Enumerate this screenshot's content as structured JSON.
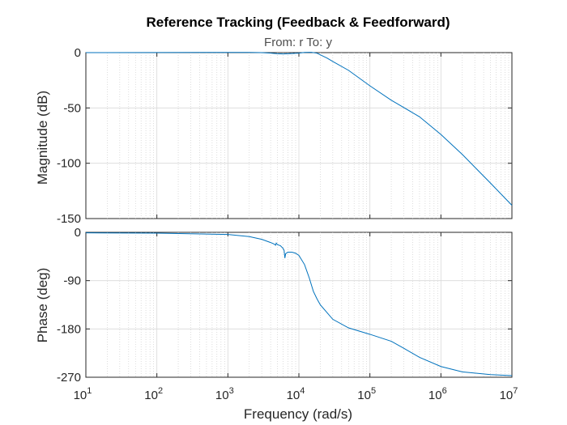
{
  "chart_data": {
    "type": "line",
    "title": "Reference Tracking (Feedback & Feedforward)",
    "subtitle": "From: r  To: y",
    "xlabel": "Frequency  (rad/s)",
    "xscale": "log",
    "xlim": [
      10,
      10000000
    ],
    "x_tick_exponents": [
      "1",
      "2",
      "3",
      "4",
      "5",
      "6",
      "7"
    ],
    "grid": true,
    "line_color": "#0072bd",
    "panels": [
      {
        "name": "magnitude",
        "ylabel": "Magnitude (dB)",
        "ylim": [
          -150,
          0
        ],
        "yticks": [
          0,
          -50,
          -100,
          -150
        ],
        "points": [
          [
            10,
            0.0
          ],
          [
            100,
            0.1
          ],
          [
            1000,
            0.2
          ],
          [
            2000,
            0.2
          ],
          [
            3000,
            0.0
          ],
          [
            4000,
            -0.5
          ],
          [
            5000,
            -1.0
          ],
          [
            6000,
            -1.2
          ],
          [
            7000,
            -1.0
          ],
          [
            8000,
            -0.8
          ],
          [
            10000,
            -0.5
          ],
          [
            12000,
            0.2
          ],
          [
            15000,
            0.3
          ],
          [
            18000,
            -0.5
          ],
          [
            20000,
            -2
          ],
          [
            25000,
            -5
          ],
          [
            30000,
            -8
          ],
          [
            50000,
            -16
          ],
          [
            100000,
            -30
          ],
          [
            200000,
            -43
          ],
          [
            500000,
            -58
          ],
          [
            1000000,
            -74
          ],
          [
            2000000,
            -92
          ],
          [
            5000000,
            -118
          ],
          [
            10000000,
            -138
          ]
        ]
      },
      {
        "name": "phase",
        "ylabel": "Phase (deg)",
        "ylim": [
          -270,
          0
        ],
        "yticks": [
          0,
          -90,
          -180,
          -270
        ],
        "points": [
          [
            10,
            -1
          ],
          [
            100,
            -1.5
          ],
          [
            1000,
            -4
          ],
          [
            2000,
            -8
          ],
          [
            3000,
            -13
          ],
          [
            4000,
            -19
          ],
          [
            4500,
            -22
          ],
          [
            4700,
            -24
          ],
          [
            4800,
            -20
          ],
          [
            5000,
            -23
          ],
          [
            5500,
            -25
          ],
          [
            6000,
            -30
          ],
          [
            6200,
            -34
          ],
          [
            6350,
            -48
          ],
          [
            6500,
            -40
          ],
          [
            6800,
            -38
          ],
          [
            7000,
            -37
          ],
          [
            8000,
            -37
          ],
          [
            9000,
            -39
          ],
          [
            10000,
            -43
          ],
          [
            12000,
            -60
          ],
          [
            14000,
            -85
          ],
          [
            16000,
            -110
          ],
          [
            18000,
            -124
          ],
          [
            20000,
            -135
          ],
          [
            30000,
            -162
          ],
          [
            50000,
            -178
          ],
          [
            100000,
            -190
          ],
          [
            200000,
            -203
          ],
          [
            300000,
            -216
          ],
          [
            500000,
            -233
          ],
          [
            1000000,
            -250
          ],
          [
            2000000,
            -260
          ],
          [
            5000000,
            -265
          ],
          [
            10000000,
            -267
          ]
        ]
      }
    ]
  }
}
